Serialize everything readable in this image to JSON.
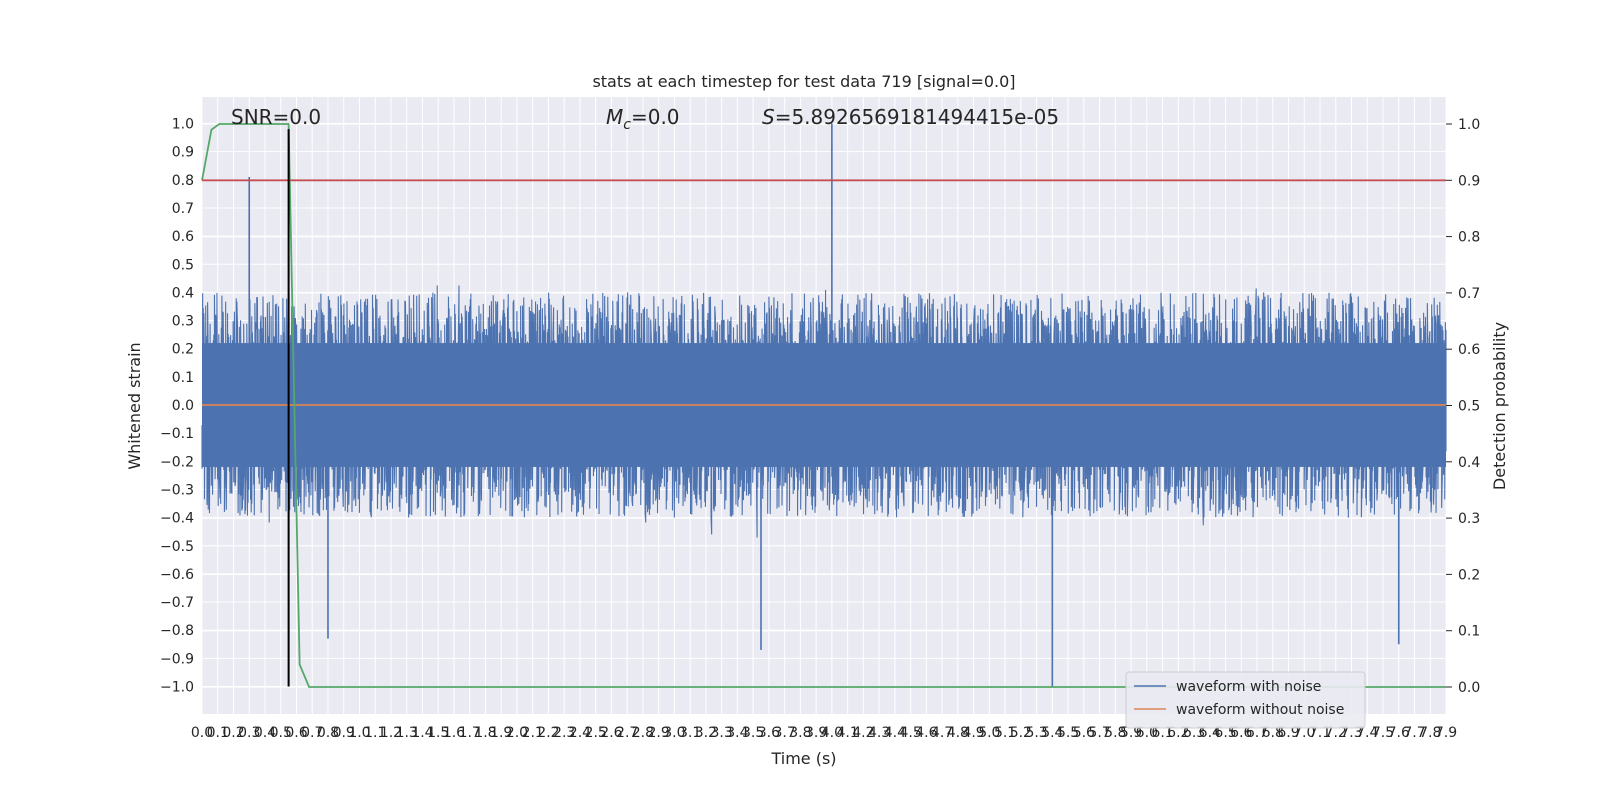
{
  "chart_data": {
    "type": "line",
    "title": "stats at each timestep for test data 719 [signal=0.0]",
    "xlabel": "Time (s)",
    "ylabel": "Whitened strain",
    "y2label": "Detection probability",
    "xlim": [
      0.0,
      7.9
    ],
    "ylim": [
      -1.0,
      1.0
    ],
    "y2lim": [
      0.0,
      1.0
    ],
    "grid": true,
    "legend_position": "lower-right",
    "x_ticks": [
      "0.0",
      "0.1",
      "0.2",
      "0.3",
      "0.4",
      "0.5",
      "0.6",
      "0.7",
      "0.8",
      "0.9",
      "1.0",
      "1.1",
      "1.2",
      "1.3",
      "1.4",
      "1.5",
      "1.6",
      "1.7",
      "1.8",
      "1.9",
      "2.0",
      "2.1",
      "2.2",
      "2.3",
      "2.4",
      "2.5",
      "2.6",
      "2.7",
      "2.8",
      "2.9",
      "3.0",
      "3.1",
      "3.2",
      "3.3",
      "3.4",
      "3.5",
      "3.6",
      "3.7",
      "3.8",
      "3.9",
      "4.0",
      "4.1",
      "4.2",
      "4.3",
      "4.4",
      "4.5",
      "4.6",
      "4.7",
      "4.8",
      "4.9",
      "5.0",
      "5.1",
      "5.2",
      "5.3",
      "5.4",
      "5.5",
      "5.6",
      "5.7",
      "5.8",
      "5.9",
      "6.0",
      "6.1",
      "6.2",
      "6.3",
      "6.4",
      "6.5",
      "6.6",
      "6.7",
      "6.8",
      "6.9",
      "7.0",
      "7.1",
      "7.2",
      "7.3",
      "7.4",
      "7.5",
      "7.6",
      "7.7",
      "7.8",
      "7.9"
    ],
    "y_ticks": [
      "1.0",
      "0.9",
      "0.8",
      "0.7",
      "0.6",
      "0.5",
      "0.4",
      "0.3",
      "0.2",
      "0.1",
      "0.0",
      "−0.1",
      "−0.2",
      "−0.3",
      "−0.4",
      "−0.5",
      "−0.6",
      "−0.7",
      "−0.8",
      "−0.9",
      "−1.0"
    ],
    "y2_ticks": [
      "1.0",
      "0.9",
      "0.8",
      "0.7",
      "0.6",
      "0.5",
      "0.4",
      "0.3",
      "0.2",
      "0.1",
      "0.0"
    ],
    "annotations": {
      "snr": "SNR=0.0",
      "mc_symbol": "M",
      "mc_subscript": "c",
      "mc_value": "=0.0",
      "s_symbol": "S",
      "s_value": "=5.8926569181494415e-05"
    },
    "series": [
      {
        "name": "waveform with noise",
        "axis": "left",
        "color": "#4c72b0",
        "description_values": "dense noise, envelope roughly ±0.4 to ±0.8",
        "peaks": [
          {
            "x": 0.3,
            "y": 0.81
          },
          {
            "x": 4.0,
            "y": 1.0
          },
          {
            "x": 5.4,
            "y": -1.0
          },
          {
            "x": 3.55,
            "y": -0.87
          },
          {
            "x": 0.8,
            "y": -0.83
          },
          {
            "x": 7.6,
            "y": -0.85
          }
        ]
      },
      {
        "name": "waveform without noise",
        "axis": "left",
        "color": "#dd8452",
        "x": [
          0.0,
          7.9
        ],
        "y": [
          0.0,
          0.0
        ]
      },
      {
        "name": "",
        "axis": "right",
        "color": "#55a868",
        "x": [
          0.0,
          0.06,
          0.11,
          0.2,
          0.55,
          0.62,
          0.68,
          7.9
        ],
        "y": [
          0.9,
          0.99,
          1.0,
          1.0,
          1.0,
          0.04,
          0.0,
          0.0
        ]
      },
      {
        "name": "",
        "axis": "right",
        "color": "#c44e52",
        "x": [
          0.0,
          7.9
        ],
        "y": [
          0.9,
          0.9
        ]
      },
      {
        "name": "",
        "axis": "left",
        "color": "#000000",
        "x": [
          0.55,
          0.55
        ],
        "y": [
          -1.0,
          0.98
        ]
      }
    ]
  }
}
